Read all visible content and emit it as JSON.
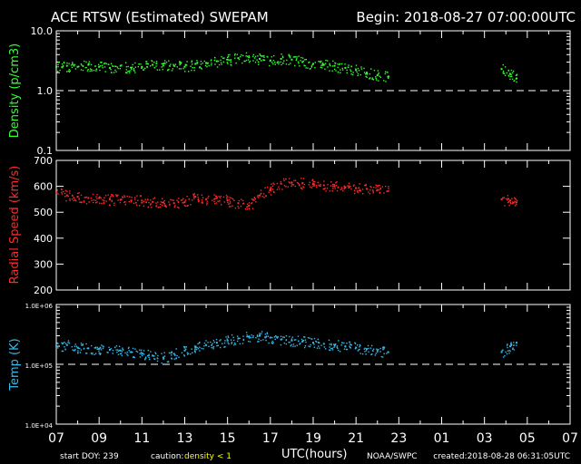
{
  "header": {
    "title": "ACE RTSW (Estimated) SWEPAM",
    "begin": "Begin: 2018-08-27 07:00:00UTC"
  },
  "footer": {
    "start_doy": "start DOY: 239",
    "caution_label": "caution:",
    "caution_value": "density < 1",
    "x_axis_label": "UTC(hours)",
    "credit": "NOAA/SWPC",
    "created": "created:2018-08-28 06:31:05UTC"
  },
  "colors": {
    "background": "#000000",
    "frame": "#ffffff",
    "density": "#33ff33",
    "speed": "#ff2a2a",
    "temp": "#33bbee",
    "caution": "#ffff00"
  },
  "chart_data": [
    {
      "type": "scatter",
      "name": "density",
      "ylabel": "Density (p/cm3)",
      "scale": "log",
      "ylim": [
        0.1,
        10.0
      ],
      "yticks": [
        0.1,
        1.0,
        10.0
      ],
      "ytick_labels": [
        "0.1",
        "1.0",
        "10.0"
      ],
      "reference_line": 1.0,
      "xlim": [
        0,
        24
      ],
      "x_tick_labels": [
        "07",
        "09",
        "11",
        "13",
        "15",
        "17",
        "19",
        "21",
        "23",
        "01",
        "03",
        "05",
        "07"
      ],
      "points": [
        [
          0.0,
          2.5
        ],
        [
          0.5,
          2.6
        ],
        [
          1.0,
          2.5
        ],
        [
          1.5,
          2.7
        ],
        [
          2.0,
          2.5
        ],
        [
          2.5,
          2.4
        ],
        [
          3.0,
          2.6
        ],
        [
          3.5,
          2.4
        ],
        [
          4.0,
          2.5
        ],
        [
          4.5,
          2.7
        ],
        [
          5.0,
          2.8
        ],
        [
          5.5,
          2.6
        ],
        [
          6.0,
          2.5
        ],
        [
          6.5,
          2.8
        ],
        [
          7.0,
          2.9
        ],
        [
          7.5,
          3.1
        ],
        [
          8.0,
          3.3
        ],
        [
          8.5,
          3.5
        ],
        [
          9.0,
          3.6
        ],
        [
          9.5,
          3.4
        ],
        [
          10.0,
          3.2
        ],
        [
          10.5,
          3.4
        ],
        [
          11.0,
          3.3
        ],
        [
          11.5,
          3.0
        ],
        [
          12.0,
          2.8
        ],
        [
          12.5,
          2.7
        ],
        [
          13.0,
          2.6
        ],
        [
          13.5,
          2.4
        ],
        [
          14.0,
          2.2
        ],
        [
          14.5,
          2.0
        ],
        [
          15.0,
          1.8
        ],
        [
          15.5,
          1.7
        ],
        [
          20.8,
          2.3
        ],
        [
          21.2,
          1.9
        ],
        [
          21.5,
          1.6
        ]
      ]
    },
    {
      "type": "scatter",
      "name": "radial-speed",
      "ylabel": "Radial Speed (km/s)",
      "ylim": [
        200,
        700
      ],
      "yticks": [
        200,
        300,
        400,
        500,
        600,
        700
      ],
      "xlim": [
        0,
        24
      ],
      "x_tick_labels": [
        "07",
        "09",
        "11",
        "13",
        "15",
        "17",
        "19",
        "21",
        "23",
        "01",
        "03",
        "05",
        "07"
      ],
      "points": [
        [
          0.0,
          575
        ],
        [
          0.5,
          565
        ],
        [
          1.0,
          560
        ],
        [
          1.5,
          555
        ],
        [
          2.0,
          555
        ],
        [
          2.5,
          550
        ],
        [
          3.0,
          548
        ],
        [
          3.5,
          545
        ],
        [
          4.0,
          545
        ],
        [
          4.5,
          540
        ],
        [
          5.0,
          538
        ],
        [
          5.5,
          535
        ],
        [
          6.0,
          540
        ],
        [
          6.5,
          560
        ],
        [
          7.0,
          550
        ],
        [
          7.5,
          555
        ],
        [
          8.0,
          545
        ],
        [
          8.5,
          535
        ],
        [
          9.0,
          525
        ],
        [
          9.5,
          565
        ],
        [
          10.0,
          590
        ],
        [
          10.5,
          610
        ],
        [
          11.0,
          615
        ],
        [
          11.5,
          612
        ],
        [
          12.0,
          608
        ],
        [
          12.5,
          604
        ],
        [
          13.0,
          600
        ],
        [
          13.5,
          597
        ],
        [
          14.0,
          593
        ],
        [
          14.5,
          590
        ],
        [
          15.0,
          586
        ],
        [
          15.5,
          582
        ],
        [
          20.8,
          550
        ],
        [
          21.2,
          545
        ],
        [
          21.5,
          538
        ]
      ]
    },
    {
      "type": "scatter",
      "name": "temperature",
      "ylabel": "Temp (K)",
      "scale": "log",
      "ylim": [
        10000,
        1000000
      ],
      "yticks": [
        10000,
        100000,
        1000000
      ],
      "ytick_labels": [
        "1.0E+04",
        "1.0E+05",
        "1.0E+06"
      ],
      "reference_line": 100000,
      "xlim": [
        0,
        24
      ],
      "x_tick_labels": [
        "07",
        "09",
        "11",
        "13",
        "15",
        "17",
        "19",
        "21",
        "23",
        "01",
        "03",
        "05",
        "07"
      ],
      "points": [
        [
          0.0,
          200000
        ],
        [
          0.5,
          210000
        ],
        [
          1.0,
          190000
        ],
        [
          1.5,
          185000
        ],
        [
          2.0,
          180000
        ],
        [
          2.5,
          175000
        ],
        [
          3.0,
          170000
        ],
        [
          3.5,
          160000
        ],
        [
          4.0,
          150000
        ],
        [
          4.5,
          140000
        ],
        [
          5.0,
          130000
        ],
        [
          5.5,
          150000
        ],
        [
          6.0,
          170000
        ],
        [
          6.5,
          190000
        ],
        [
          7.0,
          210000
        ],
        [
          7.5,
          230000
        ],
        [
          8.0,
          250000
        ],
        [
          8.5,
          270000
        ],
        [
          9.0,
          290000
        ],
        [
          9.5,
          300000
        ],
        [
          10.0,
          280000
        ],
        [
          10.5,
          260000
        ],
        [
          11.0,
          250000
        ],
        [
          11.5,
          240000
        ],
        [
          12.0,
          230000
        ],
        [
          12.5,
          220000
        ],
        [
          13.0,
          210000
        ],
        [
          13.5,
          200000
        ],
        [
          14.0,
          190000
        ],
        [
          14.5,
          180000
        ],
        [
          15.0,
          170000
        ],
        [
          15.5,
          160000
        ],
        [
          20.8,
          160000
        ],
        [
          21.2,
          200000
        ],
        [
          21.5,
          230000
        ]
      ]
    }
  ]
}
